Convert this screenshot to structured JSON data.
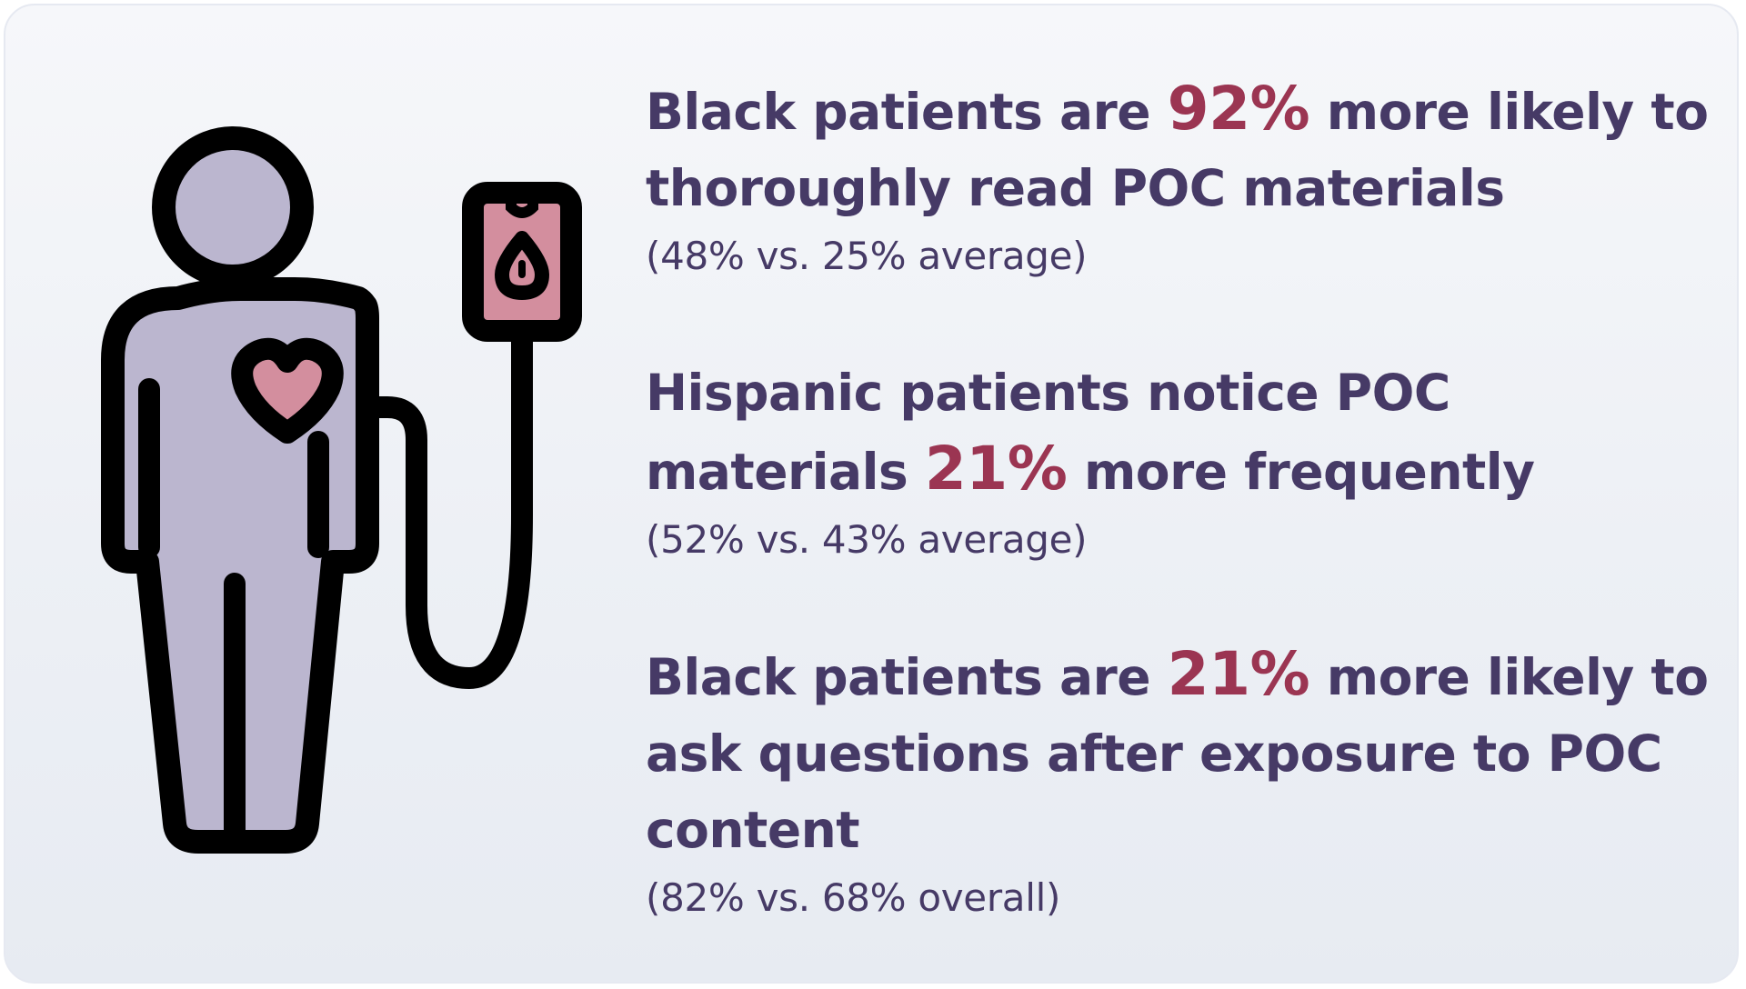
{
  "stats": [
    {
      "before": "Black patients are ",
      "highlight": "92%",
      "after": " more likely to thoroughly read POC materials",
      "detail": "(48% vs. 25% average)"
    },
    {
      "before": "Hispanic patients notice POC materials ",
      "highlight": "21%",
      "after": " more frequently",
      "detail": "(52% vs. 43% average)"
    },
    {
      "before": "Black patients are ",
      "highlight": "21%",
      "after": " more likely to ask questions after exposure to POC content",
      "detail": "(82% vs. 68% overall)"
    }
  ],
  "colors": {
    "text": "#463a66",
    "highlight": "#9b3552",
    "figure_fill": "#bbb6cf",
    "heart_fill": "#d38e9e",
    "iv_bag_fill": "#d38e9e",
    "outline": "#000000"
  },
  "illustration": {
    "icon": "patient-with-iv-drip-icon"
  }
}
